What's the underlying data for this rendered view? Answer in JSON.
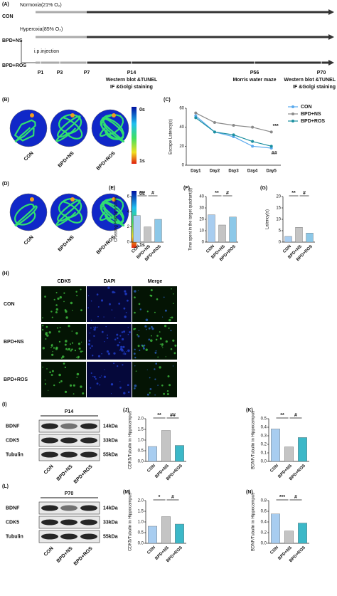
{
  "figure_a": {
    "label": "(A)",
    "groups": [
      "CON",
      "BPD+NS",
      "BPD+ROS"
    ],
    "conditions": [
      "Normoxia(21% O₂)",
      "Hyperoxia(85% O₂)"
    ],
    "injection": "i.p.injection",
    "timepoints": [
      "P1",
      "P3",
      "P7",
      "P14",
      "P56",
      "P70"
    ],
    "tests": [
      [
        "Western blot &TUNEL",
        "IF &Golgi staining"
      ],
      [
        "Morris water maze"
      ],
      [
        "Western blot &TUNEL",
        "IF &Golgi staining"
      ]
    ]
  },
  "panel_b": {
    "label": "(B)",
    "groups": [
      "CON",
      "BPD+NS",
      "BPD+ROS"
    ],
    "scale": [
      "0s",
      "1s"
    ]
  },
  "panel_d": {
    "label": "(D)",
    "groups": [
      "CON",
      "BPD+NS",
      "BPD+ROS"
    ],
    "scale": [
      "0s",
      "1s"
    ]
  },
  "panel_h": {
    "label": "(H)",
    "columns": [
      "CDK5",
      "DAPI",
      "Merge"
    ],
    "rows": [
      "CON",
      "BPD+NS",
      "BPD+ROS"
    ]
  },
  "panel_i": {
    "label": "(I)",
    "timepoint": "P14",
    "proteins": [
      "BDNF",
      "CDK5",
      "Tubulin"
    ],
    "sizes": [
      "14kDa",
      "33kDa",
      "55kDa"
    ],
    "groups": [
      "CON",
      "BPD+NS",
      "BPD+ROS"
    ]
  },
  "panel_l": {
    "label": "(L)",
    "timepoint": "P70",
    "proteins": [
      "BDNF",
      "CDK5",
      "Tubulin"
    ],
    "sizes": [
      "14kDa",
      "33kDa",
      "55kDa"
    ],
    "groups": [
      "CON",
      "BPD+NS",
      "BPD+ROS"
    ]
  },
  "chart_data": [
    {
      "type": "line",
      "label": "(C)",
      "y_label": "Escape Latency(s)",
      "categories": [
        "Day1",
        "Day2",
        "Day3",
        "Day4",
        "Day5"
      ],
      "series": [
        {
          "name": "CON",
          "color": "#5aaaee",
          "values": [
            52,
            35,
            30,
            20,
            18
          ]
        },
        {
          "name": "BPD+NS",
          "color": "#8a8a8a",
          "values": [
            55,
            45,
            42,
            40,
            35
          ]
        },
        {
          "name": "BPD+ROS",
          "color": "#1a8fa0",
          "values": [
            50,
            35,
            32,
            25,
            20
          ]
        }
      ],
      "ylim": [
        0,
        60
      ],
      "yticks": [
        0,
        20,
        40,
        60
      ],
      "annotations": [
        "***",
        "##"
      ]
    },
    {
      "type": "bar",
      "label": "(E)",
      "y_label": "Crossing Platform times",
      "categories": [
        "CON",
        "BPD+NS",
        "BPD+ROS"
      ],
      "values": [
        3.5,
        2.0,
        3.0
      ],
      "colors": [
        "#a8cdf0",
        "#c4c4c4",
        "#8cc8e8"
      ],
      "ylim": [
        0,
        6
      ],
      "yticks": [
        0,
        2,
        4,
        6
      ],
      "annotations": [
        "***",
        "#"
      ]
    },
    {
      "type": "bar",
      "label": "(F)",
      "y_label": "Time spent in the target quadrant(s)",
      "categories": [
        "CON",
        "BPD+NS",
        "BPD+ROS"
      ],
      "values": [
        24,
        15,
        22
      ],
      "colors": [
        "#a8cdf0",
        "#c4c4c4",
        "#8cc8e8"
      ],
      "ylim": [
        0,
        40
      ],
      "yticks": [
        0,
        10,
        20,
        30,
        40
      ],
      "annotations": [
        "**",
        "#"
      ]
    },
    {
      "type": "bar",
      "label": "(G)",
      "y_label": "Latency(s)",
      "categories": [
        "CON",
        "BPD+NS",
        "BPD+ROS"
      ],
      "values": [
        2.5,
        6.5,
        4
      ],
      "colors": [
        "#a8cdf0",
        "#c4c4c4",
        "#8cc8e8"
      ],
      "ylim": [
        0,
        20
      ],
      "yticks": [
        0,
        5,
        10,
        15,
        20
      ],
      "annotations": [
        "**",
        "#"
      ]
    },
    {
      "type": "bar",
      "label": "(J)",
      "y_label": "CDK5/Tubulin in Hippocampus",
      "categories": [
        "CON",
        "BPD+NS",
        "BPD+ROS"
      ],
      "values": [
        0.7,
        1.45,
        0.75
      ],
      "colors": [
        "#a8cdf0",
        "#c4c4c4",
        "#3cb8c8"
      ],
      "ylim": [
        0,
        2
      ],
      "yticks": [
        {
          "value": 0,
          "label": "0.0"
        },
        0.5,
        {
          "value": 1,
          "label": "1.0"
        },
        1.5,
        {
          "value": 2,
          "label": "2.0"
        }
      ],
      "annotations": [
        "**",
        "##"
      ]
    },
    {
      "type": "bar",
      "label": "(K)",
      "y_label": "BDNF/Tubulin in Hippocampus",
      "categories": [
        "CON",
        "BPD+NS",
        "BPD+ROS"
      ],
      "values": [
        0.38,
        0.17,
        0.28
      ],
      "colors": [
        "#a8cdf0",
        "#c4c4c4",
        "#3cb8c8"
      ],
      "ylim": [
        0,
        0.5
      ],
      "yticks": [
        {
          "value": 0,
          "label": "0.0"
        },
        0.1,
        0.2,
        0.3,
        0.4,
        0.5
      ],
      "annotations": [
        "**",
        "#"
      ]
    },
    {
      "type": "bar",
      "label": "(M)",
      "y_label": "CDK5/Tubulin in Hippocampus",
      "categories": [
        "CON",
        "BPD+NS",
        "BPD+ROS"
      ],
      "values": [
        0.8,
        1.25,
        0.9
      ],
      "colors": [
        "#a8cdf0",
        "#c4c4c4",
        "#3cb8c8"
      ],
      "ylim": [
        0,
        2
      ],
      "yticks": [
        {
          "value": 0,
          "label": "0.0"
        },
        0.5,
        {
          "value": 1,
          "label": "1.0"
        },
        1.5,
        {
          "value": 2,
          "label": "2.0"
        }
      ],
      "annotations": [
        "*",
        "#"
      ]
    },
    {
      "type": "bar",
      "label": "(N)",
      "y_label": "BDNF/Tubulin in Hippocampus",
      "categories": [
        "CON",
        "BPD+NS",
        "BPD+ROS"
      ],
      "values": [
        0.55,
        0.23,
        0.38
      ],
      "colors": [
        "#a8cdf0",
        "#c4c4c4",
        "#3cb8c8"
      ],
      "ylim": [
        0,
        0.8
      ],
      "yticks": [
        {
          "value": 0,
          "label": "0.0"
        },
        0.2,
        0.4,
        0.6,
        0.8
      ],
      "annotations": [
        "***",
        "#"
      ]
    }
  ]
}
